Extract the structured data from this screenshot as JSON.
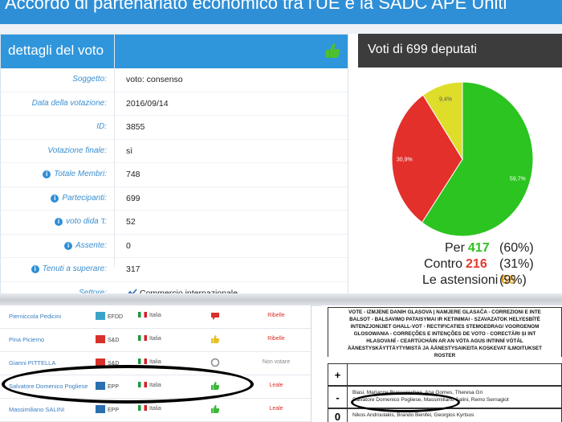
{
  "banner": {
    "title": "Accordo di partenariato economico tra l'UE e la SADC APE Uniti"
  },
  "details": {
    "header": "dettagli del voto",
    "rows": [
      {
        "label": "Soggetto:",
        "value": "voto: consenso",
        "info": false
      },
      {
        "label": "Data della votazione:",
        "value": "2016/09/14",
        "info": false
      },
      {
        "label": "ID:",
        "value": "3855",
        "info": false
      },
      {
        "label": "Votazione finale:",
        "value": "sì",
        "info": false
      },
      {
        "label": "Totale Membri:",
        "value": "748",
        "info": true
      },
      {
        "label": "Partecipanti:",
        "value": "699",
        "info": true
      },
      {
        "label": "voto dida 't:",
        "value": "52",
        "info": true
      },
      {
        "label": "Assente:",
        "value": "0",
        "info": true
      },
      {
        "label": "Tenuti a superare:",
        "value": "317",
        "info": true
      },
      {
        "label": "Settore:",
        "value": "Commercio internazionale",
        "info": false,
        "icon": "trend-line-icon"
      }
    ]
  },
  "votes_panel": {
    "header": "Voti di 699 deputati",
    "stats": [
      {
        "label": "Per",
        "count": "417",
        "pct": "(60%)",
        "color": "#2ec21f"
      },
      {
        "label": "Contro",
        "count": "216",
        "pct": "(31%)",
        "color": "#e43a2f"
      },
      {
        "label": "Le astensioni",
        "count": "66",
        "pct": "(9%)",
        "color": "#e0a020"
      }
    ]
  },
  "chart_data": {
    "type": "pie",
    "title": "",
    "slices": [
      {
        "label": "59,7%",
        "value": 59.7,
        "color": "#2cc420"
      },
      {
        "label": "30,9%",
        "value": 30.9,
        "color": "#e3302b"
      },
      {
        "label": "9,4%",
        "value": 9.4,
        "color": "#dede2a"
      }
    ]
  },
  "members": [
    {
      "name": "Pierniccola Pedicini",
      "group": "EFDD",
      "group_color": "#3aa4c8",
      "country": "Italia",
      "vote_icon": "speech-bubble-icon",
      "vote_icon_color": "#d8302a",
      "vote": "Ribelle",
      "vote_color": "#d8302a"
    },
    {
      "name": "Pina Picierno",
      "group": "S&D",
      "group_color": "#d8302a",
      "country": "Italia",
      "vote_icon": "thumb-icon",
      "vote_icon_color": "#e8c020",
      "vote": "Ribelle",
      "vote_color": "#d8302a"
    },
    {
      "name": "Gianni PITTELLA",
      "group": "S&D",
      "group_color": "#d8302a",
      "country": "Italia",
      "vote_icon": "circle-icon",
      "vote_icon_color": "#888888",
      "vote": "Non votare",
      "vote_color": "#888888"
    },
    {
      "name": "Salvatore Domenico Pogliese",
      "group": "EPP",
      "group_color": "#2a6fb0",
      "country": "Italia",
      "vote_icon": "thumb-up-icon",
      "vote_icon_color": "#3ab83a",
      "vote": "Leale",
      "vote_color": "#d8302a"
    },
    {
      "name": "Massimiliano SALINI",
      "group": "EPP",
      "group_color": "#2a6fb0",
      "country": "Italia",
      "vote_icon": "thumb-up-icon",
      "vote_icon_color": "#3ab83a",
      "vote": "Leale",
      "vote_color": "#d8302a"
    }
  ],
  "rollcall": {
    "header_lines": [
      "VOTE - IZMJENE DANIH GLASOVA | NAMJERE GLASAČA - CORREZIONI E INTE",
      "BALSOT - BALSAVIMO PATAISYMAI IR KETINIMAI - SZAVAZATOK HELYESBÍTÉ",
      "INTENZJONIJIET GHALL-VOT - RECTIFICATIES STEMGEDRAG/ VOORGENOM",
      "GLOSOWANIA - CORREÇÕES E INTENÇÕES DE VOTO - CORECTĂRI ȘI INT",
      "HLASOVANÍ - CEARTÚCHÁIN AR AN VÓTA AGUS INTINNÍ VÓTÁL",
      "ÄÄNESTYSKÄYTTÄYTYMISTÄ JA ÄÄNESTYSAIKEITA KOSKEVAT ILMOITUKSET",
      "ROSTER"
    ],
    "rows": [
      {
        "sign": "+",
        "names": [
          ""
        ]
      },
      {
        "sign": "-",
        "names": [
          "Biasi, Marianne Brasserechea, Ana Gomes, Theresa Gri",
          "Salvatore Domenico Pogliese, Massimiliano Salini, Remo Sernagiot"
        ]
      },
      {
        "sign": "0",
        "names": [
          "Nikos Androulakis, Brando Benifei, Georgios Kyrtsos"
        ]
      }
    ]
  }
}
